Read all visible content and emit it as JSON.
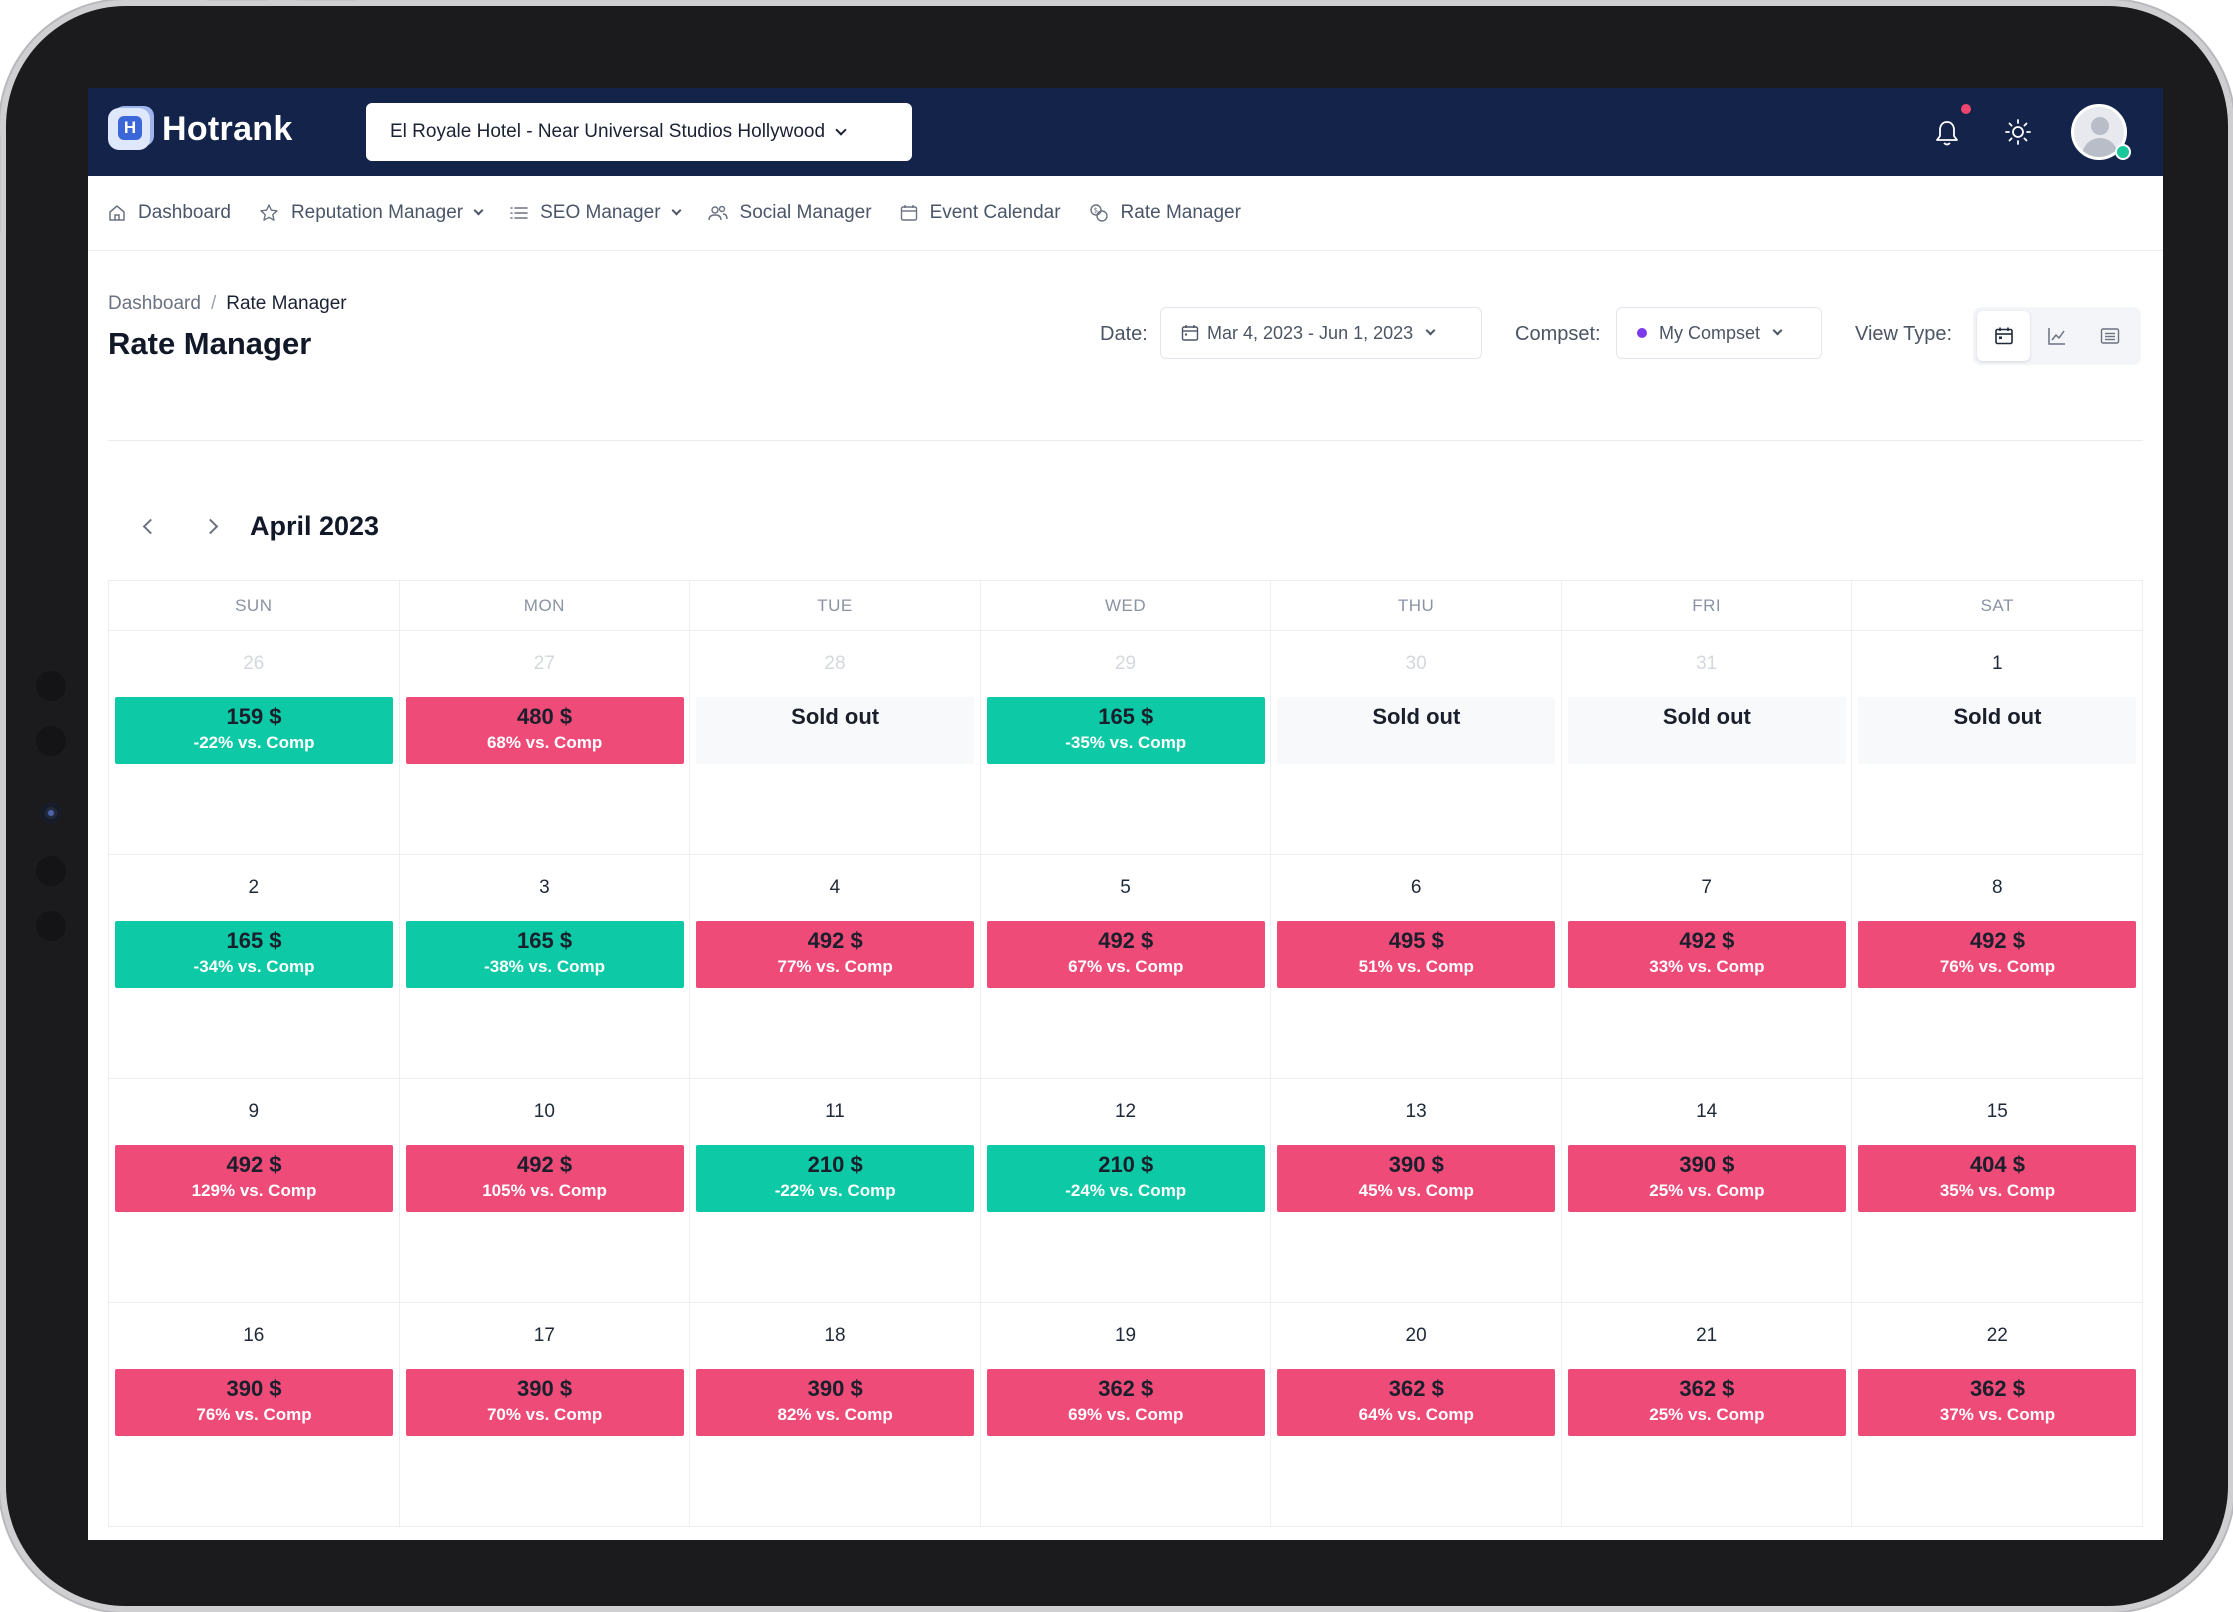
{
  "app": {
    "name": "Hotrank"
  },
  "header": {
    "hotel_name": "El Royale Hotel - Near Universal Studios Hollywood"
  },
  "menu": [
    {
      "label": "Dashboard",
      "icon": "home-icon",
      "dropdown": false
    },
    {
      "label": "Reputation Manager",
      "icon": "star-icon",
      "dropdown": true
    },
    {
      "label": "SEO Manager",
      "icon": "list-icon",
      "dropdown": true
    },
    {
      "label": "Social Manager",
      "icon": "users-icon",
      "dropdown": false
    },
    {
      "label": "Event Calendar",
      "icon": "calendar-icon",
      "dropdown": false
    },
    {
      "label": "Rate Manager",
      "icon": "coins-icon",
      "dropdown": false
    }
  ],
  "breadcrumb": {
    "root": "Dashboard",
    "separator": "/",
    "current": "Rate Manager"
  },
  "page": {
    "title": "Rate Manager"
  },
  "filters": {
    "date_label": "Date:",
    "date_value": "Mar 4, 2023 - Jun 1, 2023",
    "compset_label": "Compset:",
    "compset_value": "My Compset",
    "viewtype_label": "View Type:"
  },
  "calendar": {
    "month": "April 2023",
    "weekdays": [
      "SUN",
      "MON",
      "TUE",
      "WED",
      "THU",
      "FRI",
      "SAT"
    ],
    "weeks": [
      [
        {
          "day": "26",
          "muted": true,
          "status": "green",
          "price": "159 $",
          "vs": "-22% vs. Comp"
        },
        {
          "day": "27",
          "muted": true,
          "status": "red",
          "price": "480 $",
          "vs": "68% vs. Comp"
        },
        {
          "day": "28",
          "muted": true,
          "status": "sold",
          "price": "Sold out",
          "vs": ""
        },
        {
          "day": "29",
          "muted": true,
          "status": "green",
          "price": "165 $",
          "vs": "-35% vs. Comp"
        },
        {
          "day": "30",
          "muted": true,
          "status": "sold",
          "price": "Sold out",
          "vs": ""
        },
        {
          "day": "31",
          "muted": true,
          "status": "sold",
          "price": "Sold out",
          "vs": ""
        },
        {
          "day": "1",
          "muted": false,
          "status": "sold",
          "price": "Sold out",
          "vs": ""
        }
      ],
      [
        {
          "day": "2",
          "muted": false,
          "status": "green",
          "price": "165 $",
          "vs": "-34% vs. Comp"
        },
        {
          "day": "3",
          "muted": false,
          "status": "green",
          "price": "165 $",
          "vs": "-38% vs. Comp"
        },
        {
          "day": "4",
          "muted": false,
          "status": "red",
          "price": "492 $",
          "vs": "77% vs. Comp"
        },
        {
          "day": "5",
          "muted": false,
          "status": "red",
          "price": "492 $",
          "vs": "67% vs. Comp"
        },
        {
          "day": "6",
          "muted": false,
          "status": "red",
          "price": "495 $",
          "vs": "51% vs. Comp"
        },
        {
          "day": "7",
          "muted": false,
          "status": "red",
          "price": "492 $",
          "vs": "33% vs. Comp"
        },
        {
          "day": "8",
          "muted": false,
          "status": "red",
          "price": "492 $",
          "vs": "76% vs. Comp"
        }
      ],
      [
        {
          "day": "9",
          "muted": false,
          "status": "red",
          "price": "492 $",
          "vs": "129% vs. Comp"
        },
        {
          "day": "10",
          "muted": false,
          "status": "red",
          "price": "492 $",
          "vs": "105% vs. Comp"
        },
        {
          "day": "11",
          "muted": false,
          "status": "green",
          "price": "210 $",
          "vs": "-22% vs. Comp"
        },
        {
          "day": "12",
          "muted": false,
          "status": "green",
          "price": "210 $",
          "vs": "-24% vs. Comp"
        },
        {
          "day": "13",
          "muted": false,
          "status": "red",
          "price": "390 $",
          "vs": "45% vs. Comp"
        },
        {
          "day": "14",
          "muted": false,
          "status": "red",
          "price": "390 $",
          "vs": "25% vs. Comp"
        },
        {
          "day": "15",
          "muted": false,
          "status": "red",
          "price": "404 $",
          "vs": "35% vs. Comp"
        }
      ],
      [
        {
          "day": "16",
          "muted": false,
          "status": "red",
          "price": "390 $",
          "vs": "76% vs. Comp"
        },
        {
          "day": "17",
          "muted": false,
          "status": "red",
          "price": "390 $",
          "vs": "70% vs. Comp"
        },
        {
          "day": "18",
          "muted": false,
          "status": "red",
          "price": "390 $",
          "vs": "82% vs. Comp"
        },
        {
          "day": "19",
          "muted": false,
          "status": "red",
          "price": "362 $",
          "vs": "69% vs. Comp"
        },
        {
          "day": "20",
          "muted": false,
          "status": "red",
          "price": "362 $",
          "vs": "64% vs. Comp"
        },
        {
          "day": "21",
          "muted": false,
          "status": "red",
          "price": "362 $",
          "vs": "25% vs. Comp"
        },
        {
          "day": "22",
          "muted": false,
          "status": "red",
          "price": "362 $",
          "vs": "37% vs. Comp"
        }
      ]
    ]
  },
  "colors": {
    "topbar": "#13234a",
    "below_comp": "#0dc9a6",
    "above_comp": "#ee4b79",
    "sold_out": "#f8f9fb",
    "compset_dot": "#7c3aed",
    "notification_dot": "#f0456e",
    "online_dot": "#18c79a"
  }
}
